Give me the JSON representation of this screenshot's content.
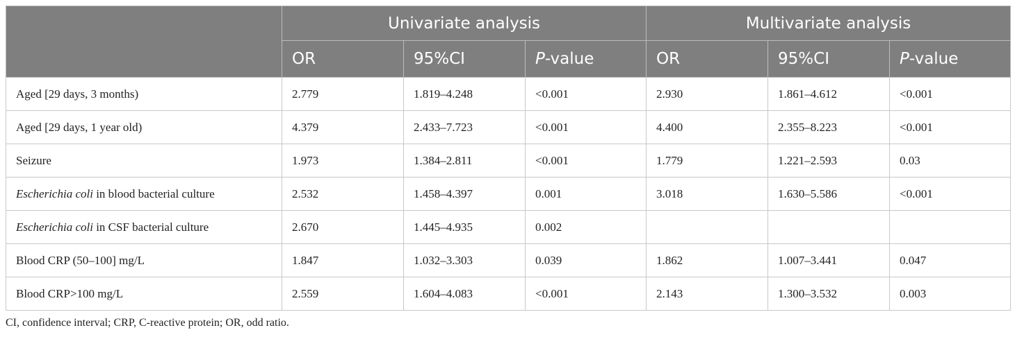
{
  "table": {
    "group_headers": [
      "Univariate analysis",
      "Multivariate analysis"
    ],
    "column_headers": [
      "OR",
      "95%CI",
      [
        {
          "text": "P",
          "italic": true
        },
        {
          "text": "-value"
        }
      ],
      "OR",
      "95%CI",
      [
        {
          "text": "P",
          "italic": true
        },
        {
          "text": "-value"
        }
      ]
    ],
    "rows": [
      [
        "Aged [29 days, 3 months)",
        "2.779",
        "1.819–4.248",
        "<0.001",
        "2.930",
        "1.861–4.612",
        "<0.001"
      ],
      [
        "Aged [29 days, 1 year old)",
        "4.379",
        "2.433–7.723",
        "<0.001",
        "4.400",
        "2.355–8.223",
        "<0.001"
      ],
      [
        "Seizure",
        "1.973",
        "1.384–2.811",
        "<0.001",
        "1.779",
        "1.221–2.593",
        "0.03"
      ],
      [
        [
          {
            "text": "Escherichia coli",
            "italic": true
          },
          {
            "text": " in blood bacterial culture"
          }
        ],
        "2.532",
        "1.458–4.397",
        "0.001",
        "3.018",
        "1.630–5.586",
        "<0.001"
      ],
      [
        [
          {
            "text": "Escherichia coli",
            "italic": true
          },
          {
            "text": " in CSF bacterial culture"
          }
        ],
        "2.670",
        "1.445–4.935",
        "0.002",
        null,
        null,
        null
      ],
      [
        "Blood CRP (50–100] mg/L",
        "1.847",
        "1.032–3.303",
        "0.039",
        "1.862",
        "1.007–3.441",
        "0.047"
      ],
      [
        "Blood CRP>100 mg/L",
        "2.559",
        "1.604–4.083",
        "<0.001",
        "2.143",
        "1.300–3.532",
        "0.003"
      ]
    ]
  },
  "footnote": "CI, confidence interval; CRP, C-reactive protein; OR, odd ratio."
}
